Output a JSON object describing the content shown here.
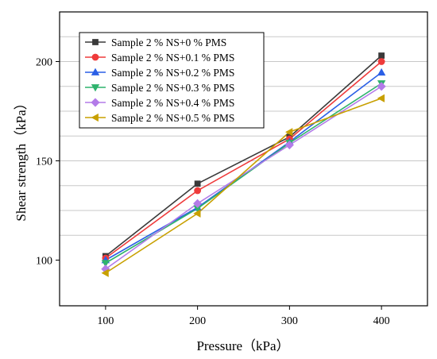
{
  "chart_data": {
    "type": "line",
    "title": "",
    "xlabel": "Pressure（kPa）",
    "ylabel": "Shear strength（kPa）",
    "x": [
      100,
      200,
      300,
      400
    ],
    "x_ticks": [
      100,
      200,
      300,
      400
    ],
    "y_ticks": [
      100,
      150,
      200
    ],
    "xlim": [
      50,
      450
    ],
    "ylim": [
      77,
      225
    ],
    "grid": "horizontal",
    "legend_position": "top-left",
    "series": [
      {
        "name": "Sample 2 % NS+0 % PMS",
        "values": [
          102,
          138.5,
          162,
          203
        ],
        "color": "#3a3a3a",
        "marker": "square"
      },
      {
        "name": "Sample 2 % NS+0.1 % PMS",
        "values": [
          101,
          135,
          161,
          200
        ],
        "color": "#ef3b3b",
        "marker": "circle"
      },
      {
        "name": "Sample 2 % NS+0.2 % PMS",
        "values": [
          100,
          126.5,
          159.5,
          194.5
        ],
        "color": "#2a5fe6",
        "marker": "triangle-up"
      },
      {
        "name": "Sample 2 % NS+0.3 % PMS",
        "values": [
          98.5,
          126,
          159,
          189
        ],
        "color": "#2fb36d",
        "marker": "triangle-down"
      },
      {
        "name": "Sample 2 % NS+0.4 % PMS",
        "values": [
          95.5,
          128.5,
          158,
          187.5
        ],
        "color": "#b37be8",
        "marker": "diamond"
      },
      {
        "name": "Sample 2 % NS+0.5 % PMS",
        "values": [
          93.5,
          123.5,
          164.5,
          181.5
        ],
        "color": "#c8a000",
        "marker": "triangle-left"
      }
    ]
  }
}
